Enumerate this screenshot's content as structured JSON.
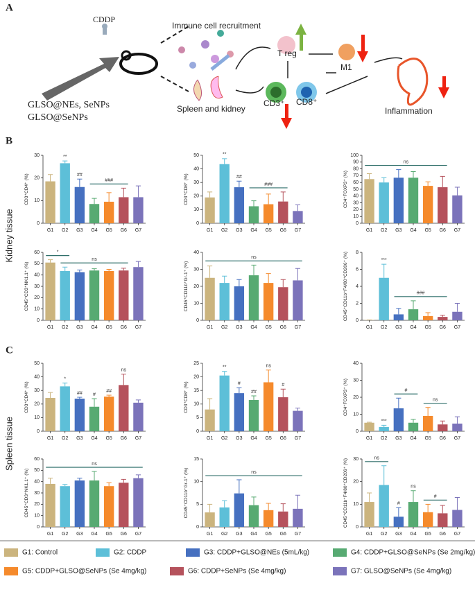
{
  "panels": {
    "a": "A",
    "b": "B",
    "c": "C"
  },
  "row_labels": [
    "Kidney tissue",
    "Spleen tissue"
  ],
  "diagram": {
    "drug": "CDDP",
    "treatments": [
      "GLSO@NEs, SeNPs",
      "GLSO@SeNPs"
    ],
    "recruitment": "Immune cell recruitment",
    "organs": "Spleen and kidney",
    "treg": "T reg",
    "m1": "M1",
    "cd3": "CD3⁺",
    "cd8": "CD8⁺",
    "outcome": "Inflammation"
  },
  "legend": [
    {
      "label": "G1: Control",
      "color": "#cbb47e"
    },
    {
      "label": "G2: CDDP",
      "color": "#5dbfd8"
    },
    {
      "label": "G3: CDDP+GLSO@NEs (5mL/kg)",
      "color": "#4670c0"
    },
    {
      "label": "G4: CDDP+GLSO@SeNPs (Se 2mg/kg)",
      "color": "#57aa72"
    },
    {
      "label": "G5: CDDP+GLSO@SeNPs (Se 4mg/kg)",
      "color": "#f58a2c"
    },
    {
      "label": "G6: CDDP+SeNPs (Se 4mg/kg)",
      "color": "#b5525c"
    },
    {
      "label": "G7: GLSO@SeNPs (Se 4mg/kg)",
      "color": "#7b73ba"
    }
  ],
  "chart_data": [
    {
      "type": "bar",
      "ylabel": "CD3⁺CD4⁺ (%)",
      "categories": [
        "G1",
        "G2",
        "G3",
        "G4",
        "G5",
        "G6",
        "G7"
      ],
      "values": [
        18.5,
        26.5,
        16,
        8.5,
        9.5,
        11.5,
        11.5
      ],
      "errors": [
        3,
        1,
        3.5,
        2.5,
        4,
        4,
        5
      ],
      "ylim": [
        0,
        30
      ],
      "yticks": [
        0,
        10,
        20,
        30
      ],
      "annotations": [
        {
          "text": "**",
          "span": [
            "G2"
          ]
        },
        {
          "text": "##",
          "span": [
            "G3"
          ]
        },
        {
          "text": "###",
          "span": [
            "G4",
            "G6"
          ]
        }
      ]
    },
    {
      "type": "bar",
      "ylabel": "CD3⁺CD8⁺ (%)",
      "categories": [
        "G1",
        "G2",
        "G3",
        "G4",
        "G5",
        "G6",
        "G7"
      ],
      "values": [
        19,
        43.5,
        26.5,
        12.5,
        14,
        16,
        9
      ],
      "errors": [
        4,
        4,
        4.5,
        4,
        7.5,
        7,
        4.5
      ],
      "ylim": [
        0,
        50
      ],
      "yticks": [
        0,
        10,
        20,
        30,
        40,
        50
      ],
      "annotations": [
        {
          "text": "**",
          "span": [
            "G2"
          ]
        },
        {
          "text": "##",
          "span": [
            "G3"
          ]
        },
        {
          "text": "###",
          "span": [
            "G4",
            "G6"
          ]
        }
      ]
    },
    {
      "type": "bar",
      "ylabel": "CD4⁺FOXP3⁺ (%)",
      "categories": [
        "G1",
        "G2",
        "G3",
        "G4",
        "G5",
        "G6",
        "G7"
      ],
      "values": [
        65,
        60,
        67,
        67,
        55,
        53,
        41
      ],
      "errors": [
        8,
        7,
        12,
        9,
        6,
        16,
        12
      ],
      "ylim": [
        0,
        100
      ],
      "yticks": [
        0,
        10,
        20,
        30,
        40,
        50,
        60,
        70,
        80,
        90,
        100
      ],
      "annotations": [
        {
          "text": "ns",
          "span": [
            "G1",
            "G6"
          ]
        }
      ]
    },
    {
      "type": "bar",
      "ylabel": "CD45⁺CD3⁺NK1.1⁺ (%)",
      "categories": [
        "G1",
        "G2",
        "G3",
        "G4",
        "G5",
        "G6",
        "G7"
      ],
      "values": [
        51,
        43.5,
        42.5,
        44,
        43.5,
        44,
        47
      ],
      "errors": [
        2.5,
        3.5,
        2,
        1.5,
        1.5,
        2,
        5
      ],
      "ylim": [
        0,
        60
      ],
      "yticks": [
        0,
        10,
        20,
        30,
        40,
        50,
        60
      ],
      "annotations": [
        {
          "text": "*",
          "span": [
            "G1",
            "G2"
          ]
        },
        {
          "text": "ns",
          "span": [
            "G2",
            "G6"
          ]
        }
      ]
    },
    {
      "type": "bar",
      "ylabel": "CD45⁺CD11b⁺Gr-1⁺ (%)",
      "categories": [
        "G1",
        "G2",
        "G3",
        "G4",
        "G5",
        "G6",
        "G7"
      ],
      "values": [
        25,
        22,
        20,
        26.5,
        22,
        19.5,
        23.5
      ],
      "errors": [
        7,
        4,
        4,
        6,
        5.5,
        4.5,
        7
      ],
      "ylim": [
        0,
        40
      ],
      "yticks": [
        0,
        10,
        20,
        30,
        40
      ],
      "annotations": [
        {
          "text": "ns",
          "span": [
            "G1",
            "G7"
          ]
        }
      ]
    },
    {
      "type": "bar",
      "ylabel": "CD45⁺CD11b⁺F4/80⁺CD206⁺ (%)",
      "categories": [
        "G1",
        "G2",
        "G3",
        "G4",
        "G5",
        "G6",
        "G7"
      ],
      "values": [
        0.05,
        5,
        0.7,
        1.3,
        0.5,
        0.4,
        1
      ],
      "errors": [
        0,
        1.6,
        0.7,
        1,
        0.4,
        0.2,
        1
      ],
      "ylim": [
        0,
        8
      ],
      "yticks": [
        0,
        2,
        4,
        6,
        8
      ],
      "annotations": [
        {
          "text": "***",
          "span": [
            "G2"
          ]
        },
        {
          "text": "###",
          "span": [
            "G3",
            "G6"
          ]
        }
      ]
    },
    {
      "type": "bar",
      "ylabel": "CD3⁺CD4⁺ (%)",
      "categories": [
        "G1",
        "G2",
        "G3",
        "G4",
        "G5",
        "G6",
        "G7"
      ],
      "values": [
        24.5,
        33,
        24,
        18,
        25.5,
        34,
        21
      ],
      "errors": [
        4,
        2.5,
        1,
        6,
        1,
        8,
        2
      ],
      "ylim": [
        0,
        50
      ],
      "yticks": [
        0,
        10,
        20,
        30,
        40,
        50
      ],
      "annotations": [
        {
          "text": "*",
          "span": [
            "G2"
          ]
        },
        {
          "text": "##",
          "span": [
            "G3"
          ]
        },
        {
          "text": "#",
          "span": [
            "G4"
          ]
        },
        {
          "text": "##",
          "span": [
            "G5"
          ]
        },
        {
          "text": "ns",
          "span": [
            "G6"
          ]
        }
      ]
    },
    {
      "type": "bar",
      "ylabel": "CD3⁺CD8⁺ (%)",
      "categories": [
        "G1",
        "G2",
        "G3",
        "G4",
        "G5",
        "G6",
        "G7"
      ],
      "values": [
        8,
        20.5,
        14,
        11.5,
        18,
        12.5,
        7.5
      ],
      "errors": [
        4,
        1.5,
        2,
        1.5,
        4.5,
        3,
        1
      ],
      "ylim": [
        0,
        25
      ],
      "yticks": [
        0,
        5,
        10,
        15,
        20,
        25
      ],
      "annotations": [
        {
          "text": "**",
          "span": [
            "G2"
          ]
        },
        {
          "text": "#",
          "span": [
            "G3"
          ]
        },
        {
          "text": "##",
          "span": [
            "G4"
          ]
        },
        {
          "text": "ns",
          "span": [
            "G5"
          ]
        },
        {
          "text": "#",
          "span": [
            "G6"
          ]
        }
      ]
    },
    {
      "type": "bar",
      "ylabel": "CD4⁺FOXP3⁺ (%)",
      "categories": [
        "G1",
        "G2",
        "G3",
        "G4",
        "G5",
        "G6",
        "G7"
      ],
      "values": [
        5,
        2.5,
        13.5,
        5,
        9,
        4,
        4.5
      ],
      "errors": [
        0.3,
        1,
        6,
        2,
        5,
        2,
        4
      ],
      "ylim": [
        0,
        40
      ],
      "yticks": [
        0,
        10,
        20,
        30,
        40
      ],
      "annotations": [
        {
          "text": "***",
          "span": [
            "G2"
          ]
        },
        {
          "text": "#",
          "span": [
            "G3",
            "G4"
          ]
        },
        {
          "text": "ns",
          "span": [
            "G5",
            "G6"
          ]
        }
      ]
    },
    {
      "type": "bar",
      "ylabel": "CD45⁺CD3⁺NK1.1⁺ (%)",
      "categories": [
        "G1",
        "G2",
        "G3",
        "G4",
        "G5",
        "G6",
        "G7"
      ],
      "values": [
        38,
        36,
        41,
        41,
        36,
        39,
        43
      ],
      "errors": [
        5,
        1.5,
        2,
        8,
        3,
        3,
        3
      ],
      "ylim": [
        0,
        60
      ],
      "yticks": [
        0,
        10,
        20,
        30,
        40,
        50,
        60
      ],
      "annotations": [
        {
          "text": "ns",
          "span": [
            "G1",
            "G7"
          ]
        }
      ]
    },
    {
      "type": "bar",
      "ylabel": "CD45⁺CD11b⁺Gr-1⁺ (%)",
      "categories": [
        "G1",
        "G2",
        "G3",
        "G4",
        "G5",
        "G6",
        "G7"
      ],
      "values": [
        3.2,
        4.3,
        7.4,
        4.8,
        3.7,
        3.4,
        4
      ],
      "errors": [
        1.8,
        1.5,
        3,
        1.8,
        1.5,
        1.7,
        3
      ],
      "ylim": [
        0,
        15
      ],
      "yticks": [
        0,
        5,
        10,
        15
      ],
      "annotations": [
        {
          "text": "ns",
          "span": [
            "G1",
            "G7"
          ]
        }
      ]
    },
    {
      "type": "bar",
      "ylabel": "CD45⁺CD11b⁺F4/80⁺CD206⁺ (%)",
      "categories": [
        "G1",
        "G2",
        "G3",
        "G4",
        "G5",
        "G6",
        "G7"
      ],
      "values": [
        11,
        18.5,
        4.5,
        11,
        6.5,
        6,
        7.5
      ],
      "errors": [
        4,
        8.5,
        4,
        5,
        3.5,
        3.5,
        5.5
      ],
      "ylim": [
        0,
        30
      ],
      "yticks": [
        0,
        10,
        20,
        30
      ],
      "annotations": [
        {
          "text": "ns",
          "span": [
            "G1",
            "G2"
          ]
        },
        {
          "text": "#",
          "span": [
            "G3"
          ]
        },
        {
          "text": "ns",
          "span": [
            "G4"
          ]
        },
        {
          "text": "#",
          "span": [
            "G5",
            "G6"
          ]
        }
      ]
    }
  ]
}
